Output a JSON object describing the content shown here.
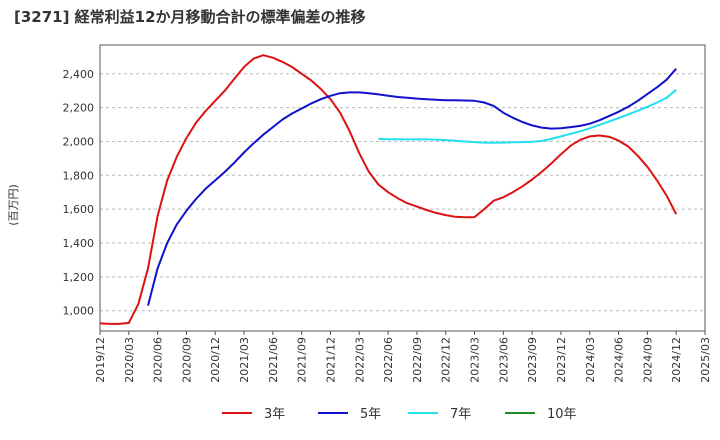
{
  "title": "[3271]  経常利益12か月移動合計の標準偏差の推移",
  "chart_data": {
    "type": "line",
    "ylabel": "(百万円)",
    "xlabel": "",
    "ylim": [
      880,
      2570
    ],
    "yticks": [
      1000,
      1200,
      1400,
      1600,
      1800,
      2000,
      2200,
      2400
    ],
    "ytick_labels": [
      "1,000",
      "1,200",
      "1,400",
      "1,600",
      "1,800",
      "2,000",
      "2,200",
      "2,400"
    ],
    "xticks": [
      "2019/12",
      "2020/03",
      "2020/06",
      "2020/09",
      "2020/12",
      "2021/03",
      "2021/06",
      "2021/09",
      "2021/12",
      "2022/03",
      "2022/06",
      "2022/09",
      "2022/12",
      "2023/03",
      "2023/06",
      "2023/09",
      "2023/12",
      "2024/03",
      "2024/06",
      "2024/09",
      "2024/12",
      "2025/03"
    ],
    "grid": "horizontal-dashed",
    "legend_position": "bottom",
    "series": [
      {
        "name": "3年",
        "color": "#dd1111",
        "x": [
          "2019/12",
          "2020/01",
          "2020/02",
          "2020/03",
          "2020/04",
          "2020/05",
          "2020/06",
          "2020/07",
          "2020/08",
          "2020/09",
          "2020/10",
          "2020/11",
          "2020/12",
          "2021/01",
          "2021/02",
          "2021/03",
          "2021/04",
          "2021/05",
          "2021/06",
          "2021/07",
          "2021/08",
          "2021/09",
          "2021/10",
          "2021/11",
          "2021/12",
          "2022/01",
          "2022/02",
          "2022/03",
          "2022/04",
          "2022/05",
          "2022/06",
          "2022/07",
          "2022/08",
          "2022/09",
          "2022/10",
          "2022/11",
          "2022/12",
          "2023/01",
          "2023/02",
          "2023/03",
          "2023/04",
          "2023/05",
          "2023/06",
          "2023/07",
          "2023/08",
          "2023/09",
          "2023/10",
          "2023/11",
          "2023/12",
          "2024/01",
          "2024/02",
          "2024/03",
          "2024/04",
          "2024/05",
          "2024/06",
          "2024/07",
          "2024/08",
          "2024/09",
          "2024/10",
          "2024/11",
          "2024/12"
        ],
        "values": [
          925,
          922,
          922,
          928,
          1040,
          1250,
          1560,
          1770,
          1910,
          2020,
          2110,
          2180,
          2240,
          2300,
          2370,
          2440,
          2490,
          2510,
          2495,
          2470,
          2440,
          2400,
          2360,
          2310,
          2250,
          2170,
          2060,
          1930,
          1820,
          1745,
          1700,
          1665,
          1635,
          1615,
          1595,
          1578,
          1565,
          1555,
          1552,
          1553,
          1600,
          1650,
          1670,
          1700,
          1735,
          1775,
          1820,
          1870,
          1925,
          1975,
          2010,
          2030,
          2035,
          2028,
          2005,
          1970,
          1915,
          1850,
          1770,
          1680,
          1570
        ]
      },
      {
        "name": "5年",
        "color": "#1111cc",
        "x": [
          "2020/05",
          "2020/06",
          "2020/07",
          "2020/08",
          "2020/09",
          "2020/10",
          "2020/11",
          "2020/12",
          "2021/01",
          "2021/02",
          "2021/03",
          "2021/04",
          "2021/05",
          "2021/06",
          "2021/07",
          "2021/08",
          "2021/09",
          "2021/10",
          "2021/11",
          "2021/12",
          "2022/01",
          "2022/02",
          "2022/03",
          "2022/04",
          "2022/05",
          "2022/06",
          "2022/07",
          "2022/08",
          "2022/09",
          "2022/10",
          "2022/11",
          "2022/12",
          "2023/01",
          "2023/02",
          "2023/03",
          "2023/04",
          "2023/05",
          "2023/06",
          "2023/07",
          "2023/08",
          "2023/09",
          "2023/10",
          "2023/11",
          "2023/12",
          "2024/01",
          "2024/02",
          "2024/03",
          "2024/04",
          "2024/05",
          "2024/06",
          "2024/07",
          "2024/08",
          "2024/09",
          "2024/10",
          "2024/11",
          "2024/12"
        ],
        "values": [
          1030,
          1250,
          1400,
          1510,
          1590,
          1660,
          1720,
          1770,
          1820,
          1875,
          1935,
          1990,
          2040,
          2085,
          2130,
          2165,
          2195,
          2225,
          2250,
          2270,
          2285,
          2290,
          2290,
          2285,
          2278,
          2270,
          2263,
          2258,
          2253,
          2250,
          2247,
          2244,
          2243,
          2242,
          2240,
          2230,
          2210,
          2170,
          2140,
          2115,
          2095,
          2082,
          2076,
          2078,
          2085,
          2092,
          2105,
          2125,
          2150,
          2175,
          2205,
          2240,
          2280,
          2320,
          2365,
          2430
        ]
      },
      {
        "name": "7年",
        "color": "#22e0ee",
        "x": [
          "2022/05",
          "2022/06",
          "2022/07",
          "2022/08",
          "2022/09",
          "2022/10",
          "2022/11",
          "2022/12",
          "2023/01",
          "2023/02",
          "2023/03",
          "2023/04",
          "2023/05",
          "2023/06",
          "2023/07",
          "2023/08",
          "2023/09",
          "2023/10",
          "2023/11",
          "2023/12",
          "2024/01",
          "2024/02",
          "2024/03",
          "2024/04",
          "2024/05",
          "2024/06",
          "2024/07",
          "2024/08",
          "2024/09",
          "2024/10",
          "2024/11",
          "2024/12"
        ],
        "values": [
          2015,
          2013,
          2013,
          2012,
          2012,
          2012,
          2011,
          2008,
          2004,
          2000,
          1996,
          1993,
          1992,
          1993,
          1995,
          1996,
          1998,
          2003,
          2015,
          2030,
          2045,
          2060,
          2078,
          2098,
          2118,
          2138,
          2160,
          2182,
          2205,
          2230,
          2258,
          2305
        ]
      },
      {
        "name": "10年",
        "color": "#228822",
        "x": [],
        "values": []
      }
    ]
  }
}
